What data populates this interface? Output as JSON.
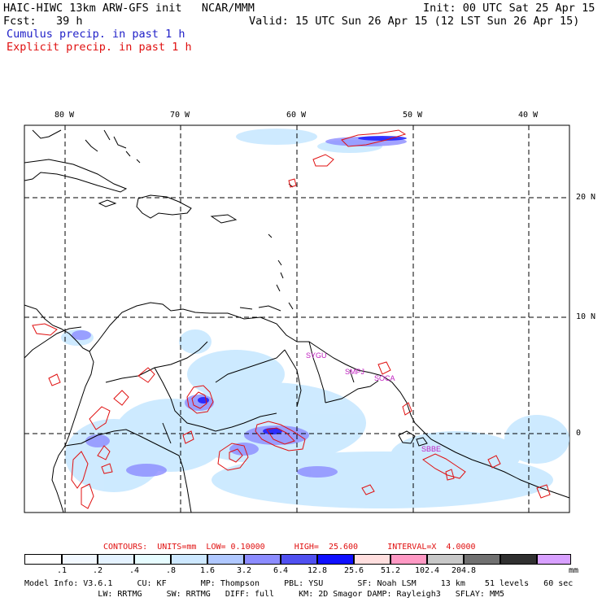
{
  "header": {
    "title_left": "HAIC-HIWC 13km ARW-GFS init   NCAR/MMM",
    "init": "Init: 00 UTC Sat 25 Apr 15",
    "fcst": "Fcst:   39 h",
    "valid": "Valid: 15 UTC Sun 26 Apr 15 (12 LST Sun 26 Apr 15)",
    "cumulus": "Cumulus precip. in past 1 h",
    "explicit": "Explicit precip. in past 1 h"
  },
  "map": {
    "lon_labels": [
      "80 W",
      "70 W",
      "60 W",
      "50 W",
      "40 W"
    ],
    "lat_labels": [
      "20 N",
      "10 N",
      "0"
    ],
    "stations": [
      "SYGU",
      "SMPJ",
      "SOCA",
      "SBBE"
    ],
    "colors": {
      "coast": "#000000",
      "grid": "#000000",
      "explicit_contour": "#e01010",
      "station": "#c020c0"
    }
  },
  "contours_line": {
    "text": "CONTOURS:  UNITS=mm  LOW= 0.10000      HIGH=  25.600      INTERVAL=X  4.0000"
  },
  "colorbar": {
    "labels": [
      ".1",
      ".2",
      ".4",
      ".8",
      "1.6",
      "3.2",
      "6.4",
      "12.8",
      "25.6",
      "51.2",
      "102.4",
      "204.8"
    ],
    "unit": "mm",
    "colors": [
      "#ffffff",
      "#e8f4ff",
      "#d2e8ff",
      "#e6fcff",
      "#bde3ff",
      "#b0c8ff",
      "#8c8cff",
      "#5050f0",
      "#1010ff",
      "#ffdede",
      "#ff99c4",
      "#c8c8c8",
      "#707070",
      "#303030",
      "#d8a0ff"
    ]
  },
  "model_info": {
    "line1": "Model Info: V3.6.1     CU: KF       MP: Thompson     PBL: YSU       SF: Noah LSM     13 km    51 levels   60 sec",
    "line2": "               LW: RRTMG     SW: RRTMG   DIFF: full     KM: 2D Smagor DAMP: Rayleigh3   SFLAY: MM5"
  }
}
